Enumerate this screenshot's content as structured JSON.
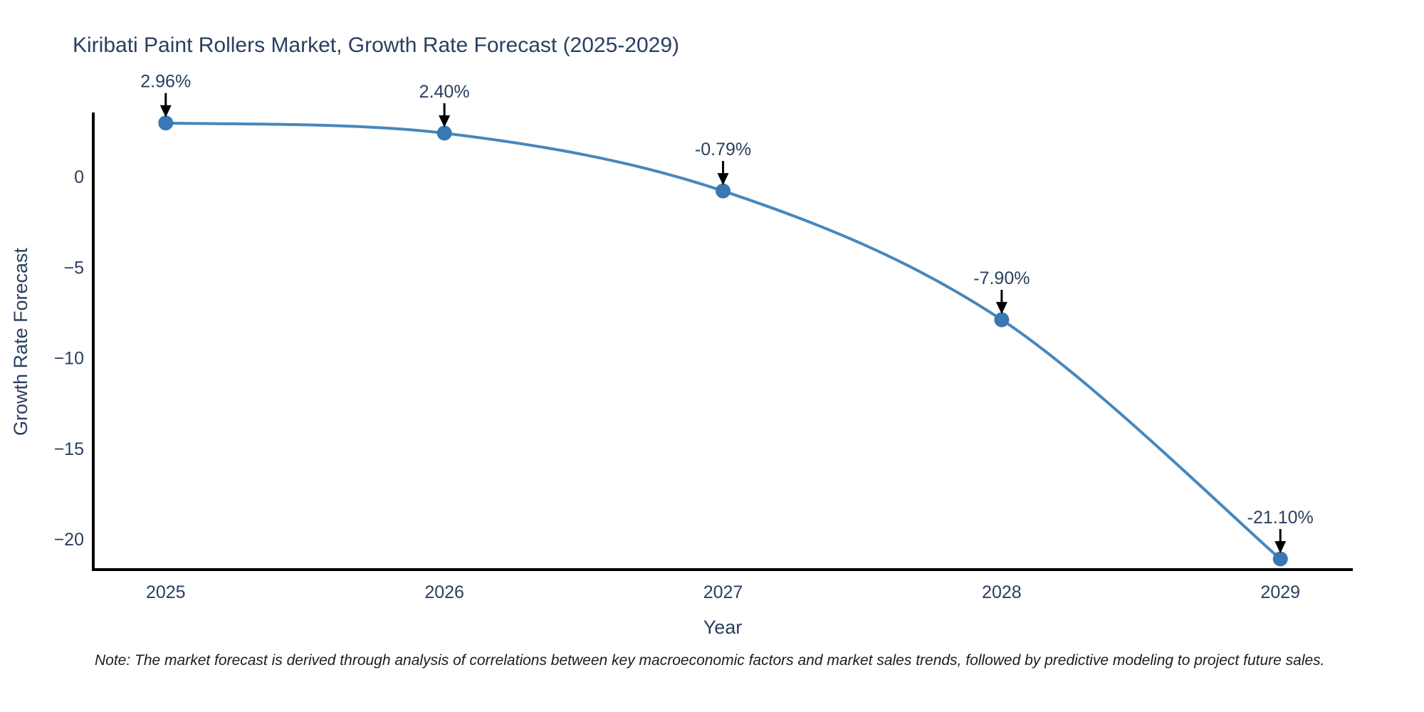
{
  "page": {
    "note": "Note: The market forecast is derived through analysis of correlations between key macroeconomic factors and market sales trends, followed by predictive modeling to project future sales."
  },
  "chart_data": {
    "type": "line",
    "title": "Kiribati Paint Rollers Market, Growth Rate Forecast (2025-2029)",
    "xlabel": "Year",
    "ylabel": "Growth Rate Forecast",
    "x": [
      2025,
      2026,
      2027,
      2028,
      2029
    ],
    "categories": [
      "2025",
      "2026",
      "2027",
      "2028",
      "2029"
    ],
    "series": [
      {
        "name": "Growth Rate Forecast",
        "values": [
          2.96,
          2.4,
          -0.79,
          -7.9,
          -21.1
        ]
      }
    ],
    "point_labels": [
      "2.96%",
      "2.40%",
      "-0.79%",
      "-7.90%",
      "-21.10%"
    ],
    "yticks": [
      0,
      -5,
      -10,
      -15,
      -20
    ],
    "ytick_labels": [
      "0",
      "−5",
      "−10",
      "−15",
      "−20"
    ],
    "xlim": [
      2024.74,
      2029.26
    ],
    "ylim": [
      -21.69,
      3.46
    ],
    "line_shape": "spline",
    "grid": false,
    "legend_position": "none",
    "colors": {
      "line": "#4787bd",
      "marker": "#3a78b4",
      "axis": "#000000",
      "text": "#2a3f5f",
      "arrow": "#000000",
      "note_text": "#1c1c1c",
      "background": "#ffffff"
    }
  }
}
